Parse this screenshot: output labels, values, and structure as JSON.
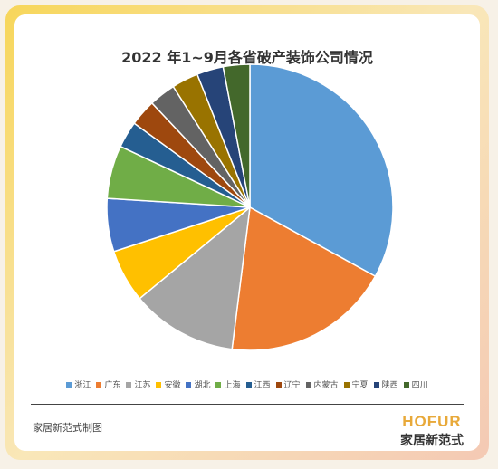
{
  "footer": {
    "credit": "家居新范式制图"
  },
  "brand": {
    "logo_en": "HOFUR",
    "logo_cn": "家居新范式"
  },
  "chart_data": {
    "type": "pie",
    "title": "2022 年1~9月各省破产装饰公司情况",
    "legend_position": "bottom",
    "categories": [
      "浙江",
      "广东",
      "江苏",
      "安徽",
      "湖北",
      "上海",
      "江西",
      "辽宁",
      "内蒙古",
      "宁夏",
      "陕西",
      "四川"
    ],
    "values": [
      33,
      19,
      12,
      6,
      6,
      6,
      3,
      3,
      3,
      3,
      3,
      3
    ],
    "colors": [
      "#5b9bd5",
      "#ed7d31",
      "#a5a5a5",
      "#ffc000",
      "#4472c4",
      "#70ad47",
      "#255e91",
      "#9e480e",
      "#636363",
      "#997300",
      "#264478",
      "#43682b"
    ]
  }
}
